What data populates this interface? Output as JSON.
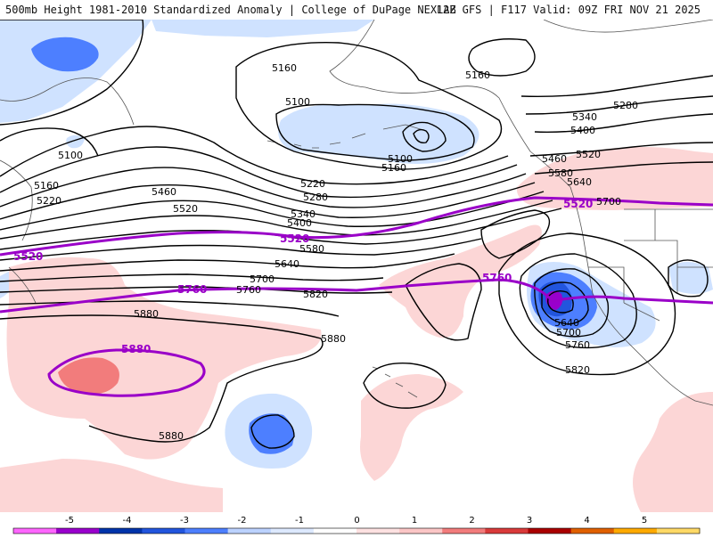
{
  "title": {
    "left": "500mb Height 1981-2010 Standardized Anomaly | College of DuPage NEXLAB",
    "right": "12Z GFS | F117 Valid: 09Z FRI NOV 21 2025"
  },
  "height_labels": [
    "5160",
    "5100",
    "5160",
    "5100",
    "5100",
    "5160",
    "5160",
    "5220",
    "5280",
    "5340",
    "5400",
    "5460",
    "5520",
    "5580",
    "5640",
    "5700",
    "5760",
    "5820",
    "5880",
    "5880",
    "5880",
    "5340",
    "5400",
    "5460",
    "5520",
    "5580",
    "5640",
    "5700",
    "5640",
    "5700",
    "5760",
    "5820",
    "5280",
    "5220"
  ],
  "purple_labels": [
    "5520",
    "5520",
    "5520",
    "5760",
    "5760",
    "5880"
  ],
  "colorbar": {
    "ticks": [
      "-5",
      "-4",
      "-3",
      "-2",
      "-1",
      "0",
      "1",
      "2",
      "3",
      "4",
      "5"
    ],
    "colors": [
      "#ff66ff",
      "#9900cc",
      "#0033aa",
      "#2255dd",
      "#4d7fff",
      "#bcd2ff",
      "#dde9ff",
      "#ffffff",
      "#fde1e1",
      "#fbc6c6",
      "#f27c7c",
      "#d93a3a",
      "#aa0000",
      "#e06000",
      "#ffaa00",
      "#ffd966"
    ]
  },
  "colors": {
    "neg_light": "#cfe2ff",
    "neg_mid": "#4d7fff",
    "neg_strong": "#9900cc",
    "pos_light": "#fcd6d6",
    "pos_mid": "#f27c7c",
    "contour": "#000000",
    "purple": "#9a00c8",
    "coast": "#555555"
  }
}
